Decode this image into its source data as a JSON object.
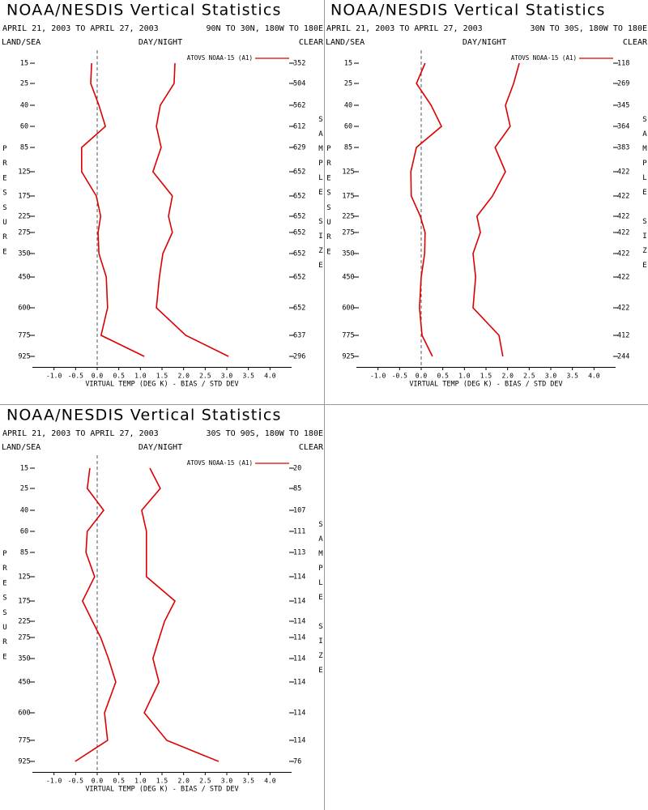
{
  "chart_data": [
    {
      "type": "line",
      "title": "NOAA/NESDIS Vertical Statistics",
      "subtitle": "APRIL 21, 2003 TO APRIL 27, 2003",
      "region": "90N TO 30N, 180W TO 180E",
      "land_sea_label": "LAND/SEA",
      "day_night_label": "DAY/NIGHT",
      "clear_label": "CLEAR",
      "y_label": "PRESSURE",
      "y2_label": "SAMPLE SIZE",
      "x_label": "VIRTUAL TEMP (DEG K) - BIAS / STD DEV",
      "categories": [
        15,
        25,
        40,
        60,
        85,
        125,
        175,
        225,
        275,
        350,
        450,
        600,
        775,
        925
      ],
      "sample_size": [
        352,
        504,
        562,
        612,
        629,
        652,
        652,
        652,
        652,
        652,
        652,
        652,
        637,
        296
      ],
      "series": [
        {
          "name": "ATOVS NOAA-15 (A1)",
          "color": "#dd0000",
          "values": [
            -0.13,
            -0.15,
            0.04,
            0.19,
            -0.36,
            -0.36,
            -0.02,
            0.08,
            0.02,
            0.04,
            0.21,
            0.24,
            0.09,
            1.09
          ],
          "std_dev": [
            1.8,
            1.78,
            1.46,
            1.37,
            1.48,
            1.29,
            1.74,
            1.65,
            1.74,
            1.52,
            1.44,
            1.37,
            2.05,
            3.04
          ]
        }
      ],
      "xlim": [
        -1.5,
        4.5
      ],
      "xticks": [
        {
          "value": -1,
          "label": "-1.0"
        },
        {
          "value": -0.5,
          "label": "-0.5"
        },
        {
          "value": 0,
          "label": "0.0"
        },
        {
          "value": 0.5,
          "label": "0.5"
        },
        {
          "value": 1,
          "label": "1.0"
        },
        {
          "value": 1.5,
          "label": "1.5"
        },
        {
          "value": 2,
          "label": "2.0"
        },
        {
          "value": 2.5,
          "label": "2.5"
        },
        {
          "value": 3,
          "label": "3.0"
        },
        {
          "value": 3.5,
          "label": "3.5"
        },
        {
          "value": 4,
          "label": "4.0"
        }
      ]
    },
    {
      "type": "line",
      "title": "NOAA/NESDIS Vertical Statistics",
      "subtitle": "APRIL 21, 2003 TO APRIL 27, 2003",
      "region": "30N TO 30S, 180W TO 180E",
      "land_sea_label": "LAND/SEA",
      "day_night_label": "DAY/NIGHT",
      "clear_label": "CLEAR",
      "y_label": "PRESSURE",
      "y2_label": "SAMPLE SIZE",
      "x_label": "VIRTUAL TEMP (DEG K) - BIAS / STD DEV",
      "categories": [
        15,
        25,
        40,
        60,
        85,
        125,
        175,
        225,
        275,
        350,
        450,
        600,
        775,
        925
      ],
      "sample_size": [
        118,
        269,
        345,
        364,
        383,
        422,
        422,
        422,
        422,
        422,
        422,
        422,
        412,
        244
      ],
      "series": [
        {
          "name": "ATOVS NOAA-15 (A1)",
          "color": "#dd0000",
          "values": [
            0.09,
            -0.11,
            0.23,
            0.47,
            -0.11,
            -0.24,
            -0.23,
            -0.02,
            0.09,
            0.08,
            0.0,
            -0.04,
            0.02,
            0.26
          ],
          "std_dev": [
            2.27,
            2.14,
            1.95,
            2.06,
            1.71,
            1.95,
            1.65,
            1.29,
            1.37,
            1.2,
            1.26,
            1.2,
            1.8,
            1.89
          ]
        }
      ],
      "xlim": [
        -1.5,
        4.5
      ],
      "xticks": [
        {
          "value": -1,
          "label": "-1.0"
        },
        {
          "value": -0.5,
          "label": "-0.5"
        },
        {
          "value": 0,
          "label": "0.0"
        },
        {
          "value": 0.5,
          "label": "0.5"
        },
        {
          "value": 1,
          "label": "1.0"
        },
        {
          "value": 1.5,
          "label": "1.5"
        },
        {
          "value": 2,
          "label": "2.0"
        },
        {
          "value": 2.5,
          "label": "2.5"
        },
        {
          "value": 3,
          "label": "3.0"
        },
        {
          "value": 3.5,
          "label": "3.5"
        },
        {
          "value": 4,
          "label": "4.0"
        }
      ]
    },
    {
      "type": "line",
      "title": "NOAA/NESDIS Vertical Statistics",
      "subtitle": "APRIL 21, 2003 TO APRIL 27, 2003",
      "region": "30S TO 90S, 180W TO 180E",
      "land_sea_label": "LAND/SEA",
      "day_night_label": "DAY/NIGHT",
      "clear_label": "CLEAR",
      "y_label": "PRESSURE",
      "y2_label": "SAMPLE SIZE",
      "x_label": "VIRTUAL TEMP (DEG K) - BIAS / STD DEV",
      "categories": [
        15,
        25,
        40,
        60,
        85,
        125,
        175,
        225,
        275,
        350,
        450,
        600,
        775,
        925
      ],
      "sample_size": [
        20,
        85,
        107,
        111,
        113,
        114,
        114,
        114,
        114,
        114,
        114,
        114,
        114,
        76
      ],
      "series": [
        {
          "name": "ATOVS NOAA-15 (A1)",
          "color": "#dd0000",
          "values": [
            -0.17,
            -0.23,
            0.15,
            -0.23,
            -0.26,
            -0.06,
            -0.34,
            -0.11,
            0.08,
            0.26,
            0.43,
            0.17,
            0.24,
            -0.51
          ],
          "std_dev": [
            1.22,
            1.46,
            1.03,
            1.14,
            1.14,
            1.14,
            1.8,
            1.56,
            1.44,
            1.29,
            1.43,
            1.09,
            1.61,
            2.81
          ]
        }
      ],
      "xlim": [
        -1.5,
        4.5
      ],
      "xticks": [
        {
          "value": -1,
          "label": "-1.0"
        },
        {
          "value": -0.5,
          "label": "-0.5"
        },
        {
          "value": 0,
          "label": "0.0"
        },
        {
          "value": 0.5,
          "label": "0.5"
        },
        {
          "value": 1,
          "label": "1.0"
        },
        {
          "value": 1.5,
          "label": "1.5"
        },
        {
          "value": 2,
          "label": "2.0"
        },
        {
          "value": 2.5,
          "label": "2.5"
        },
        {
          "value": 3,
          "label": "3.0"
        },
        {
          "value": 3.5,
          "label": "3.5"
        },
        {
          "value": 4,
          "label": "4.0"
        }
      ]
    }
  ]
}
